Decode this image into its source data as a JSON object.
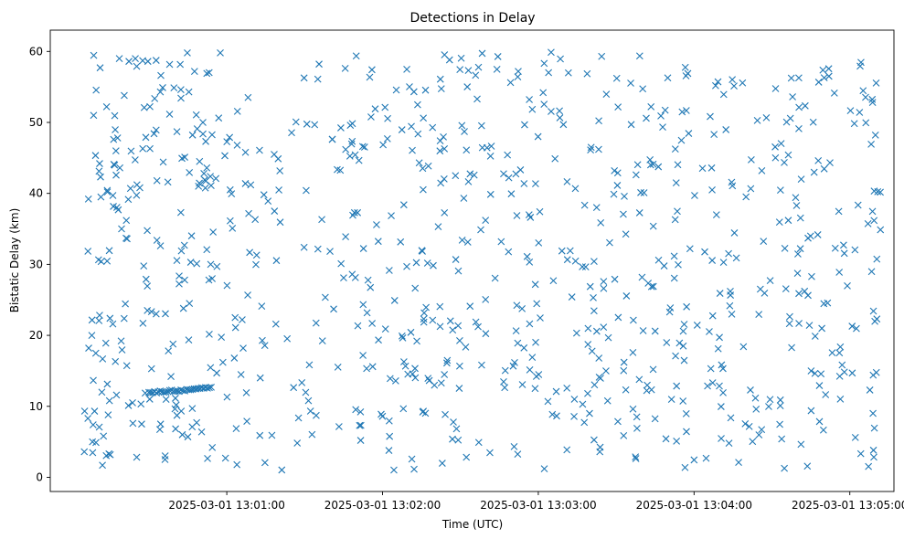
{
  "chart_data": {
    "type": "scatter",
    "title": "Detections in Delay",
    "xlabel": "Time (UTC)",
    "ylabel": "Bistatic Delay (km)",
    "x_unit": "seconds since 2025-03-01 12:59:52 UTC",
    "xlim": [
      0,
      325
    ],
    "ylim": [
      -2,
      63
    ],
    "x_ticks": [
      {
        "value": 68,
        "label": "2025-03-01 13:01:00"
      },
      {
        "value": 128,
        "label": "2025-03-01 13:02:00"
      },
      {
        "value": 188,
        "label": "2025-03-01 13:03:00"
      },
      {
        "value": 248,
        "label": "2025-03-01 13:04:00"
      },
      {
        "value": 308,
        "label": "2025-03-01 13:05:00"
      }
    ],
    "y_ticks": [
      {
        "value": 0,
        "label": "0"
      },
      {
        "value": 10,
        "label": "10"
      },
      {
        "value": 20,
        "label": "20"
      },
      {
        "value": 30,
        "label": "30"
      },
      {
        "value": 40,
        "label": "40"
      },
      {
        "value": 50,
        "label": "50"
      },
      {
        "value": 60,
        "label": "60"
      }
    ],
    "series": [
      {
        "name": "Detections",
        "marker": "x",
        "color": "#1f77b4",
        "generated_noise": {
          "count": 780,
          "x_range": [
            13,
            320
          ],
          "y_range": [
            1,
            60
          ],
          "seed": 20250301
        },
        "track": {
          "count": 34,
          "x_start": 38,
          "x_end": 62,
          "y_start": 11.9,
          "y_end": 12.6
        },
        "points": [
          [
            14.5,
            8.3
          ],
          [
            14.8,
            18.2
          ],
          [
            14.7,
            39.2
          ],
          [
            16.0,
            20.0
          ],
          [
            16.5,
            7.4
          ],
          [
            17.6,
            4.9
          ],
          [
            19.0,
            44.2
          ],
          [
            19.2,
            57.7
          ],
          [
            19.5,
            39.5
          ],
          [
            19.6,
            30.4
          ],
          [
            20.1,
            1.7
          ],
          [
            20.5,
            5.8
          ],
          [
            21.4,
            18.9
          ],
          [
            21.7,
            52.2
          ],
          [
            22.0,
            40.2
          ],
          [
            22.3,
            8.8
          ],
          [
            22.6,
            3.3
          ],
          [
            23.0,
            22.4
          ],
          [
            24.1,
            21.6
          ],
          [
            24.4,
            47.6
          ],
          [
            25.3,
            46.0
          ],
          [
            25.5,
            11.6
          ],
          [
            26.6,
            59.0
          ],
          [
            26.8,
            43.6
          ],
          [
            27.3,
            19.2
          ],
          [
            28.5,
            53.8
          ],
          [
            29.3,
            36.2
          ],
          [
            29.6,
            33.6
          ],
          [
            30.3,
            58.6
          ],
          [
            30.9,
            40.7
          ],
          [
            31.7,
            10.5
          ],
          [
            33.3,
            57.9
          ],
          [
            34.5,
            40.8
          ],
          [
            35.2,
            7.5
          ],
          [
            35.7,
            21.7
          ],
          [
            36.8,
            47.9
          ],
          [
            36.9,
            27.9
          ],
          [
            37.4,
            23.5
          ],
          [
            38.4,
            46.3
          ],
          [
            39.0,
            15.3
          ],
          [
            41.1,
            33.4
          ],
          [
            41.1,
            41.8
          ],
          [
            42.4,
            54.3
          ],
          [
            42.5,
            7.5
          ],
          [
            43.3,
            54.9
          ],
          [
            44.2,
            2.5
          ],
          [
            45.3,
            41.6
          ],
          [
            45.5,
            17.8
          ],
          [
            46.5,
            14.2
          ],
          [
            48.8,
            48.7
          ],
          [
            50.3,
            37.3
          ],
          [
            50.5,
            31.9
          ],
          [
            51.3,
            23.8
          ],
          [
            51.8,
            45.1
          ],
          [
            52.8,
            59.8
          ],
          [
            53.0,
            5.7
          ],
          [
            53.6,
            24.5
          ],
          [
            54.1,
            30.3
          ],
          [
            54.7,
            9.7
          ],
          [
            56.4,
            7.7
          ],
          [
            56.6,
            49.1
          ],
          [
            57.1,
            41.0
          ],
          [
            57.5,
            44.5
          ],
          [
            58.3,
            6.4
          ],
          [
            58.8,
            50.0
          ],
          [
            59.5,
            41.9
          ],
          [
            60.3,
            56.9
          ],
          [
            61.1,
            27.8
          ],
          [
            61.8,
            30.0
          ],
          [
            62.4,
            4.2
          ],
          [
            63.8,
            42.1
          ],
          [
            64.2,
            29.7
          ],
          [
            65.5,
            59.8
          ],
          [
            66.5,
            16.2
          ],
          [
            67.5,
            2.7
          ],
          [
            68.1,
            11.3
          ],
          [
            69.3,
            40.5
          ],
          [
            70.9,
            16.8
          ],
          [
            71.2,
            22.5
          ],
          [
            72.0,
            46.8
          ]
        ]
      }
    ]
  }
}
